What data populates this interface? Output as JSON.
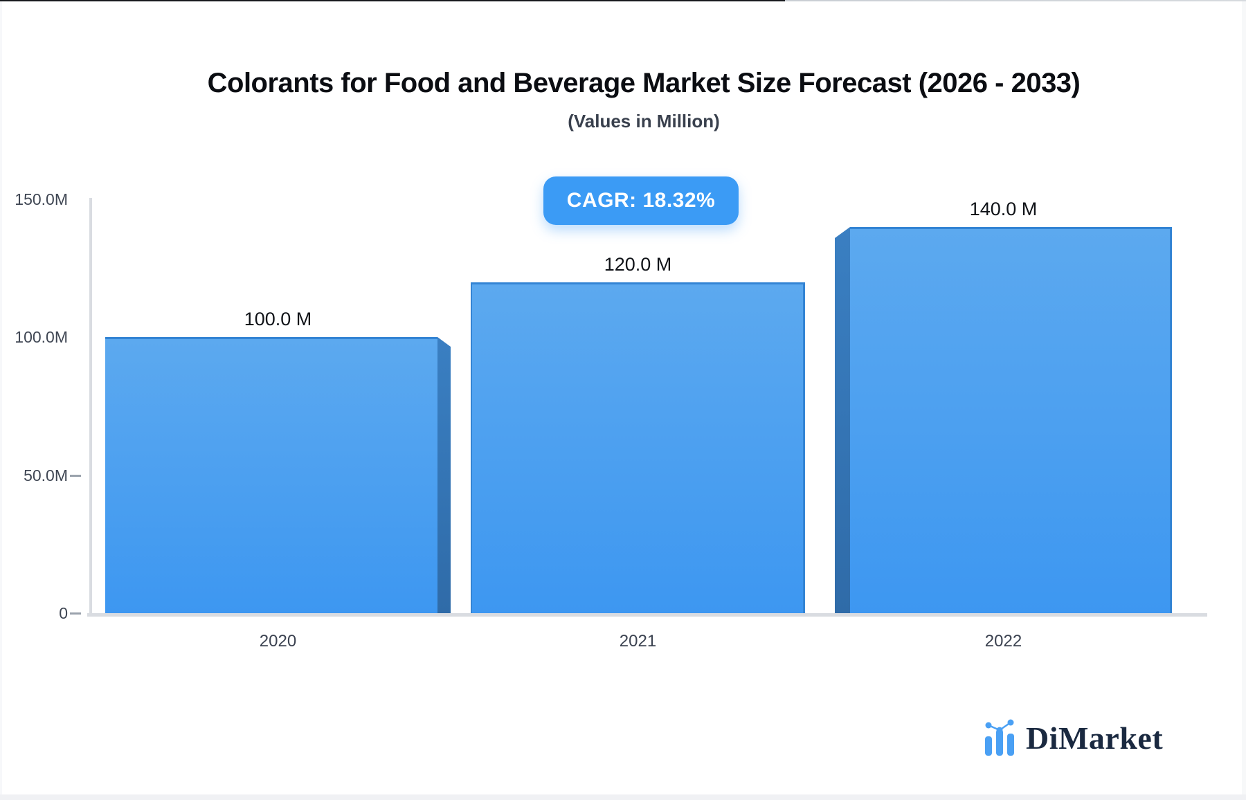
{
  "title": "Colorants for Food and Beverage Market Size Forecast (2026 - 2033)",
  "subtitle": "(Values in Million)",
  "badge": {
    "label": "CAGR: 18.32%",
    "color": "#3B9BF5"
  },
  "watermark": {
    "brand": "DiMarket"
  },
  "chart_data": {
    "type": "bar",
    "title": "Colorants for Food and Beverage Market Size Forecast (2026 - 2033)",
    "subtitle": "(Values in Million)",
    "unit": "Million",
    "categories": [
      "2020",
      "2021",
      "2022"
    ],
    "values": [
      100,
      120,
      140
    ],
    "bar_labels": [
      "100.0 M",
      "120.0 M",
      "140.0 M"
    ],
    "cagr_percent": 18.32,
    "ylim": [
      0,
      150
    ],
    "yticks": [
      150,
      100,
      50,
      0
    ],
    "ytick_labels": [
      "150.0M",
      "100.0M",
      "50.0M",
      "0"
    ],
    "xlabel": "",
    "ylabel": "",
    "grid": false,
    "legend": false,
    "bar_color_top": "#5CA9EF",
    "bar_color_bottom": "#3D97F1",
    "bar_side_color": "#3273B5",
    "axis_color": "#D9DCE1"
  }
}
